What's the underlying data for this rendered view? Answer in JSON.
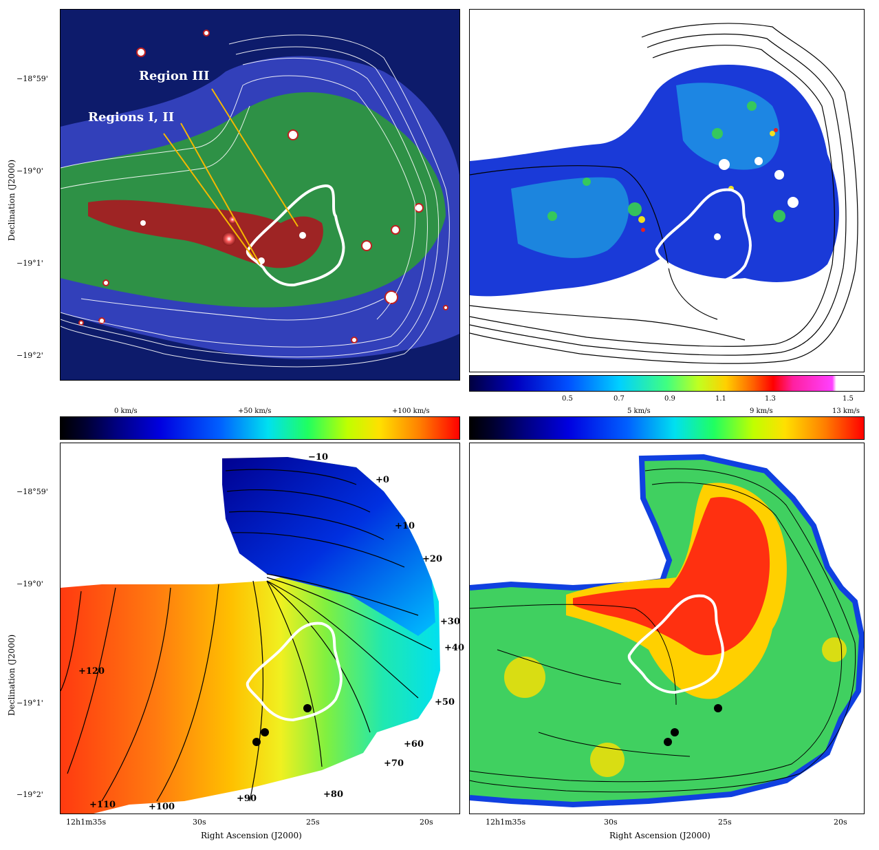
{
  "axes": {
    "dec_label": "Declination (J2000)",
    "ra_label": "Right Ascension (J2000)",
    "dec_ticks": [
      "−18°59'",
      "−19°0'",
      "−19°1'",
      "−19°2'"
    ],
    "ra_ticks": [
      "12h1m35s",
      "30s",
      "25s",
      "20s"
    ]
  },
  "panel_tl": {
    "annotations": [
      "Region III",
      "Regions I, II"
    ]
  },
  "panel_tr": {
    "colorbar_ticks": [
      "0.5",
      "0.7",
      "0.9",
      "1.1",
      "1.3",
      "1.5"
    ]
  },
  "panel_bl": {
    "colorbar_ticks": [
      "0 km/s",
      "+50 km/s",
      "+100 km/s"
    ],
    "contour_labels": [
      "−10",
      "+0",
      "+10",
      "+20",
      "+30",
      "+40",
      "+50",
      "+60",
      "+70",
      "+80",
      "+90",
      "+100",
      "+110",
      "+120"
    ]
  },
  "panel_br": {
    "colorbar_ticks": [
      "5 km/s",
      "9 km/s",
      "13 km/s"
    ]
  }
}
